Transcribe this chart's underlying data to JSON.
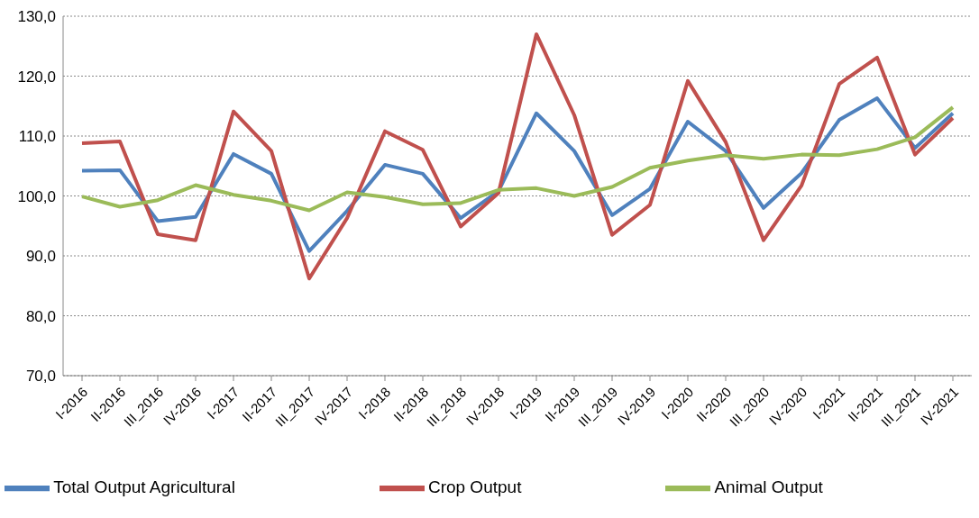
{
  "chart_data": {
    "type": "line",
    "categories": [
      "I-2016",
      "II-2016",
      "III_2016",
      "IV-2016",
      "I-2017",
      "II-2017",
      "III_2017",
      "IV-2017",
      "I-2018",
      "II-2018",
      "III_2018",
      "IV-2018",
      "I-2019",
      "II-2019",
      "III_2019",
      "IV-2019",
      "I-2020",
      "II-2020",
      "III_2020",
      "IV-2020",
      "I-2021",
      "II-2021",
      "III_2021",
      "IV-2021"
    ],
    "series": [
      {
        "name": "Total Output Agricultural",
        "color": "#4f81bd",
        "values": [
          104.2,
          104.3,
          95.8,
          96.5,
          107.0,
          103.7,
          90.8,
          97.5,
          105.2,
          103.7,
          96.3,
          100.8,
          113.8,
          107.5,
          96.8,
          101.2,
          112.4,
          107.5,
          98.0,
          103.8,
          112.7,
          116.3,
          108.0,
          113.8
        ]
      },
      {
        "name": "Crop Output",
        "color": "#c0504d",
        "values": [
          108.8,
          109.1,
          93.6,
          92.6,
          114.1,
          107.5,
          86.2,
          96.3,
          110.8,
          107.7,
          94.9,
          100.5,
          127.0,
          113.5,
          93.5,
          98.5,
          119.2,
          109.0,
          92.6,
          101.7,
          118.7,
          123.1,
          106.9,
          113.0
        ]
      },
      {
        "name": "Animal Output",
        "color": "#9bbb59",
        "values": [
          99.9,
          98.2,
          99.3,
          101.8,
          100.2,
          99.2,
          97.6,
          100.6,
          99.8,
          98.6,
          98.8,
          101.0,
          101.3,
          100.0,
          101.5,
          104.7,
          105.9,
          106.8,
          106.2,
          106.9,
          106.8,
          107.8,
          109.8,
          114.8
        ]
      }
    ],
    "ylim": [
      70,
      130
    ],
    "yticks": [
      {
        "value": 70,
        "label": "70,0"
      },
      {
        "value": 80,
        "label": "80,0"
      },
      {
        "value": 90,
        "label": "90,0"
      },
      {
        "value": 100,
        "label": "100,0"
      },
      {
        "value": 110,
        "label": "110,0"
      },
      {
        "value": 120,
        "label": "120,0"
      },
      {
        "value": 130,
        "label": "130,0"
      }
    ],
    "grid": "y",
    "legend": "bottom",
    "marker": "none",
    "line_style": "solid"
  }
}
